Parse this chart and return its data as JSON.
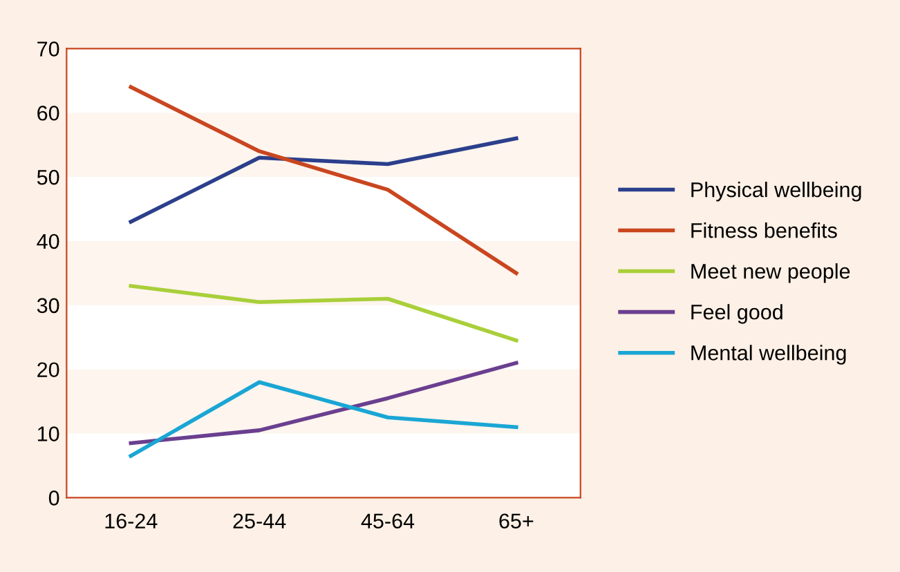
{
  "chart_data": {
    "type": "line",
    "categories": [
      "16-24",
      "25-44",
      "45-64",
      "65+"
    ],
    "series": [
      {
        "name": "Physical wellbeing",
        "color": "#2b3f8c",
        "values": [
          43,
          53,
          52,
          56
        ]
      },
      {
        "name": "Fitness benefits",
        "color": "#c9461f",
        "values": [
          64,
          54,
          48,
          35
        ]
      },
      {
        "name": "Meet new people",
        "color": "#a9cf3a",
        "values": [
          33,
          30.5,
          31,
          24.5
        ]
      },
      {
        "name": "Feel good",
        "color": "#6a3f8f",
        "values": [
          8.5,
          10.5,
          15.5,
          21
        ]
      },
      {
        "name": "Mental wellbeing",
        "color": "#1aa6d4",
        "values": [
          6.5,
          18,
          12.5,
          11
        ]
      }
    ],
    "ylim": [
      0,
      70
    ],
    "yticks": [
      0,
      10,
      20,
      30,
      40,
      50,
      60,
      70
    ],
    "bands": [
      {
        "axis": "y",
        "from": 10,
        "to": 20,
        "color": "#fdf5ee"
      },
      {
        "axis": "y",
        "from": 30,
        "to": 40,
        "color": "#fdf5ee"
      },
      {
        "axis": "y",
        "from": 50,
        "to": 60,
        "color": "#fdf5ee"
      }
    ],
    "grid": false,
    "legend": "right",
    "marker": "none",
    "line_style": "solid"
  }
}
